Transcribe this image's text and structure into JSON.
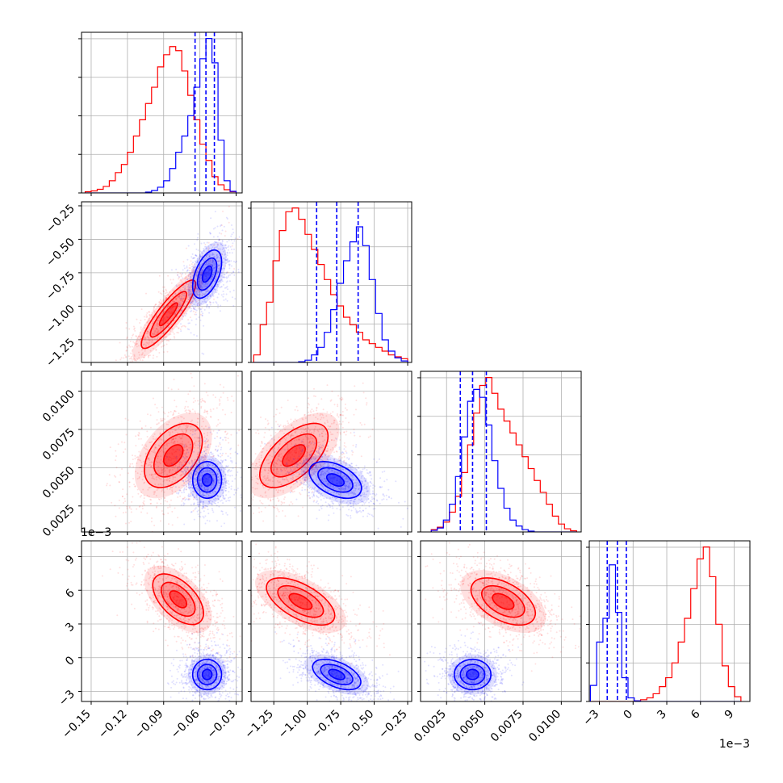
{
  "chart_data": {
    "type": "corner",
    "title": "",
    "parameters": 4,
    "colors": {
      "red": "#ff0000",
      "blue": "#0000ff"
    },
    "series": [
      {
        "color": "red",
        "marginals_and_contours": "red posterior"
      },
      {
        "color": "blue",
        "marginals_and_contours": "blue posterior"
      }
    ],
    "axes": [
      {
        "index": 0,
        "range": [
          -0.158,
          -0.025
        ],
        "ticks": [
          -0.15,
          -0.12,
          -0.09,
          -0.06,
          -0.03
        ],
        "tick_labels": [
          "−0.15",
          "−0.12",
          "−0.09",
          "−0.06",
          "−0.03"
        ],
        "offset_label": ""
      },
      {
        "index": 1,
        "range": [
          -1.42,
          -0.22
        ],
        "ticks": [
          -1.25,
          -1.0,
          -0.75,
          -0.5,
          -0.25
        ],
        "tick_labels": [
          "−1.25",
          "−1.00",
          "−0.75",
          "−0.50",
          "−0.25"
        ],
        "offset_label": ""
      },
      {
        "index": 2,
        "range": [
          0.0008,
          0.0113
        ],
        "ticks": [
          0.0025,
          0.005,
          0.0075,
          0.01
        ],
        "tick_labels": [
          "0.0025",
          "0.0050",
          "0.0075",
          "0.0100"
        ],
        "offset_label": ""
      },
      {
        "index": 3,
        "range": [
          -3.9,
          10.4
        ],
        "ticks": [
          -3,
          0,
          3,
          6,
          9
        ],
        "tick_labels": [
          "−3",
          "0",
          "3",
          "6",
          "9"
        ],
        "offset_label": "1e−3"
      }
    ],
    "marginals": [
      {
        "param": 0,
        "bins_range": [
          -0.155,
          -0.03
        ],
        "red": [
          0.3,
          0.5,
          0.9,
          1.6,
          3,
          5,
          7,
          10,
          14,
          18,
          22,
          26,
          31,
          34,
          36,
          35,
          30,
          24,
          18,
          12,
          8,
          4,
          2,
          0.8,
          0.3
        ],
        "blue": [
          0,
          0,
          0,
          0,
          0,
          0,
          0,
          0,
          0,
          0,
          0.2,
          0.6,
          1.4,
          3,
          6,
          10,
          14,
          19,
          26,
          33,
          38,
          32,
          13,
          3,
          0.4
        ],
        "blue_quantiles": [
          -0.064,
          -0.055,
          -0.048
        ]
      },
      {
        "param": 1,
        "bins_range": [
          -1.4,
          -0.25
        ],
        "red": [
          2,
          10,
          16,
          27,
          35,
          40,
          41,
          38,
          34,
          30,
          26,
          22,
          18,
          15,
          12,
          10,
          8,
          6,
          5,
          4,
          3,
          2,
          1.5,
          1
        ],
        "blue": [
          0,
          0,
          0,
          0,
          0,
          0,
          0,
          0.2,
          0.6,
          2,
          4,
          8,
          14,
          21,
          27,
          32,
          36,
          31,
          22,
          13,
          6,
          3,
          1.2,
          0.4
        ],
        "blue_quantiles": [
          -0.93,
          -0.78,
          -0.62
        ]
      },
      {
        "param": 2,
        "bins_range": [
          0.0015,
          0.011
        ],
        "red": [
          0.6,
          1.2,
          2.5,
          5,
          9,
          15,
          22,
          30,
          37,
          39,
          35,
          31,
          28,
          25,
          22,
          19,
          16,
          13,
          10,
          7,
          4,
          2,
          0.8,
          0.3
        ],
        "blue": [
          0.4,
          1,
          3,
          7,
          14,
          24,
          33,
          36,
          34,
          27,
          18,
          11,
          6,
          3,
          1.5,
          0.6,
          0.2,
          0,
          0,
          0,
          0,
          0,
          0,
          0
        ],
        "blue_quantiles": [
          0.0034,
          0.0042,
          0.0051
        ]
      },
      {
        "param": 3,
        "bins_range": [
          -3.8,
          9.6
        ],
        "red": [
          0,
          0,
          0,
          0,
          0,
          0,
          0,
          0.1,
          0.3,
          0.6,
          1.3,
          2.5,
          4,
          6.5,
          10,
          14,
          19,
          24,
          26,
          21,
          13,
          6,
          2.5,
          0.8
        ],
        "blue": [
          2.7,
          10,
          14,
          23,
          15,
          4,
          0.6,
          0.1,
          0,
          0,
          0,
          0,
          0,
          0,
          0,
          0,
          0,
          0,
          0,
          0,
          0,
          0,
          0,
          0
        ],
        "blue_quantiles": [
          -2.3,
          -1.4,
          -0.6
        ]
      }
    ],
    "pairs": [
      {
        "x_param": 0,
        "y_param": 1,
        "red": {
          "mean": [
            -0.086,
            -1.06
          ],
          "std": [
            0.015,
            0.17
          ],
          "corr": 0.88
        },
        "blue": {
          "mean": [
            -0.054,
            -0.76
          ],
          "std": [
            0.008,
            0.12
          ],
          "corr": 0.5
        }
      },
      {
        "x_param": 0,
        "y_param": 2,
        "red": {
          "mean": [
            -0.082,
            0.0058
          ],
          "std": [
            0.016,
            0.0014
          ],
          "corr": 0.45
        },
        "blue": {
          "mean": [
            -0.054,
            0.0042
          ],
          "std": [
            0.008,
            0.0008
          ],
          "corr": 0.0
        }
      },
      {
        "x_param": 1,
        "y_param": 2,
        "red": {
          "mean": [
            -1.1,
            0.0058
          ],
          "std": [
            0.17,
            0.0014
          ],
          "corr": 0.6
        },
        "blue": {
          "mean": [
            -0.79,
            0.0042
          ],
          "std": [
            0.13,
            0.0008
          ],
          "corr": -0.45
        }
      },
      {
        "x_param": 0,
        "y_param": 3,
        "red": {
          "mean": [
            -0.078,
            5.2
          ],
          "std": [
            0.014,
            1.5
          ],
          "corr": -0.55
        },
        "blue": {
          "mean": [
            -0.054,
            -1.5
          ],
          "std": [
            0.008,
            0.9
          ],
          "corr": 0.0
        }
      },
      {
        "x_param": 1,
        "y_param": 3,
        "red": {
          "mean": [
            -1.05,
            5.0
          ],
          "std": [
            0.17,
            1.4
          ],
          "corr": -0.6
        },
        "blue": {
          "mean": [
            -0.78,
            -1.5
          ],
          "std": [
            0.12,
            0.9
          ],
          "corr": -0.5
        }
      },
      {
        "x_param": 2,
        "y_param": 3,
        "red": {
          "mean": [
            0.0062,
            5.0
          ],
          "std": [
            0.0014,
            1.4
          ],
          "corr": -0.5
        },
        "blue": {
          "mean": [
            0.0042,
            -1.5
          ],
          "std": [
            0.0008,
            0.9
          ],
          "corr": 0.0
        }
      }
    ],
    "contour_levels_sigma": [
      0.5,
      1.0,
      1.5,
      2.0
    ],
    "grid": true,
    "legend": "none"
  }
}
